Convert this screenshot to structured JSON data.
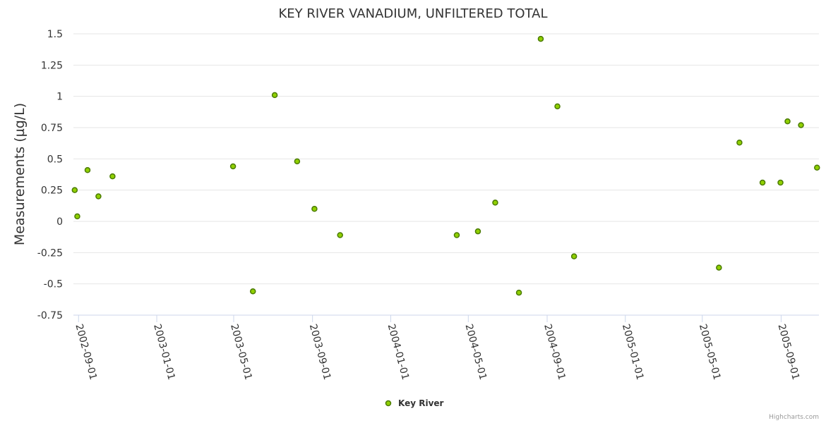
{
  "chart_data": {
    "type": "scatter",
    "title": "KEY RIVER VANADIUM, UNFILTERED TOTAL",
    "ylabel": "Measurements (µg/L)",
    "xlabel": "",
    "ylim": [
      -0.75,
      1.5
    ],
    "yticks": [
      "-0.75",
      "-0.5",
      "-0.25",
      "0",
      "0.25",
      "0.5",
      "0.75",
      "1",
      "1.25",
      "1.5"
    ],
    "xlim": [
      "2002-08-24",
      "2005-10-30"
    ],
    "xticks": [
      "2002-09-01",
      "2003-01-01",
      "2003-05-01",
      "2003-09-01",
      "2004-01-01",
      "2004-05-01",
      "2004-09-01",
      "2005-01-01",
      "2005-05-01",
      "2005-09-01"
    ],
    "grid": true,
    "legend_position": "bottom-center",
    "series": [
      {
        "name": "Key River",
        "color": "#90d000",
        "border_color": "#4a7a00",
        "points": [
          {
            "x": "2002-08-26",
            "y": 0.25
          },
          {
            "x": "2002-08-30",
            "y": 0.04
          },
          {
            "x": "2002-09-15",
            "y": 0.41
          },
          {
            "x": "2002-10-02",
            "y": 0.2
          },
          {
            "x": "2002-10-24",
            "y": 0.36
          },
          {
            "x": "2003-04-30",
            "y": 0.44
          },
          {
            "x": "2003-05-31",
            "y": -0.56
          },
          {
            "x": "2003-07-04",
            "y": 1.01
          },
          {
            "x": "2003-08-08",
            "y": 0.48
          },
          {
            "x": "2003-09-04",
            "y": 0.1
          },
          {
            "x": "2003-10-14",
            "y": -0.11
          },
          {
            "x": "2004-04-13",
            "y": -0.11
          },
          {
            "x": "2004-05-16",
            "y": -0.08
          },
          {
            "x": "2004-06-12",
            "y": 0.15
          },
          {
            "x": "2004-07-19",
            "y": -0.57
          },
          {
            "x": "2004-08-22",
            "y": 1.46
          },
          {
            "x": "2004-09-17",
            "y": 0.92
          },
          {
            "x": "2004-10-13",
            "y": -0.28
          },
          {
            "x": "2005-05-27",
            "y": -0.37
          },
          {
            "x": "2005-06-28",
            "y": 0.63
          },
          {
            "x": "2005-08-03",
            "y": 0.31
          },
          {
            "x": "2005-08-31",
            "y": 0.31
          },
          {
            "x": "2005-09-11",
            "y": 0.8
          },
          {
            "x": "2005-10-02",
            "y": 0.77
          },
          {
            "x": "2005-10-27",
            "y": 0.43
          }
        ]
      }
    ]
  },
  "legend": {
    "label": "Key River"
  },
  "credits": "Highcharts.com"
}
